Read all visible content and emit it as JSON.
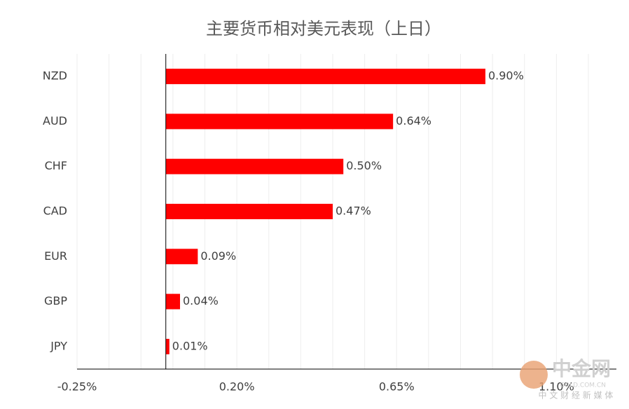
{
  "chart_data": {
    "type": "barh",
    "title": "主要货币相对美元表现（上日）",
    "categories": [
      "NZD",
      "AUD",
      "CHF",
      "CAD",
      "EUR",
      "GBP",
      "JPY"
    ],
    "values": [
      0.9,
      0.64,
      0.5,
      0.47,
      0.09,
      0.04,
      0.01
    ],
    "value_labels": [
      "0.90%",
      "0.64%",
      "0.50%",
      "0.47%",
      "0.09%",
      "0.04%",
      "0.01%"
    ],
    "color": "#ff0000",
    "xlim": [
      -0.25,
      1.19
    ],
    "xticks": [
      {
        "value": -0.25,
        "label": "-0.25%"
      },
      {
        "value": 0.2,
        "label": "0.20%"
      },
      {
        "value": 0.65,
        "label": "0.65%"
      },
      {
        "value": 1.1,
        "label": "1.10%"
      }
    ],
    "xgrid": [
      -0.16,
      -0.07,
      0.02,
      0.11,
      0.29,
      0.38,
      0.47,
      0.56,
      0.74,
      0.83,
      0.92,
      1.01,
      1.19
    ],
    "grid": true
  },
  "watermark": {
    "name": "中金网",
    "site": "GOLD.COM.CN",
    "slogan": "中 文 财 经 新 媒 体"
  }
}
